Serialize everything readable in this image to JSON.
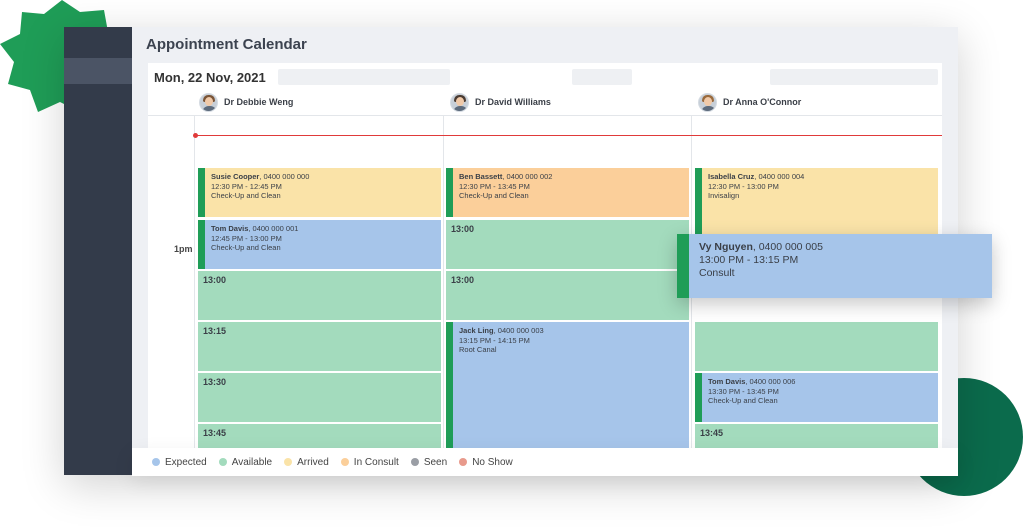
{
  "page": {
    "title": "Appointment Calendar",
    "date": "Mon, 22 Nov, 2021",
    "time_label": "1pm"
  },
  "doctors": [
    {
      "name": "Dr Debbie Weng",
      "hair": "#7a5436"
    },
    {
      "name": "Dr David Williams",
      "hair": "#4a3b32"
    },
    {
      "name": "Dr Anna O'Connor",
      "hair": "#9a6a3c"
    }
  ],
  "columns": [
    [
      {
        "status": "arrived",
        "name": "Susie Cooper",
        "phone": ", 0400 000 000",
        "time": "12:30 PM - 12:45 PM",
        "reason": "Check-Up and Clean"
      },
      {
        "status": "expected",
        "name": "Tom Davis",
        "phone": ", 0400 000 001",
        "time": "12:45 PM - 13:00 PM",
        "reason": "Check-Up and Clean"
      },
      {
        "status": "available",
        "label": "13:00"
      },
      {
        "status": "available",
        "label": "13:15"
      },
      {
        "status": "available",
        "label": "13:30"
      },
      {
        "status": "available",
        "label": "13:45"
      }
    ],
    [
      {
        "status": "in_consult",
        "name": "Ben Bassett",
        "phone": ", 0400 000 002",
        "time": "12:30 PM - 13:45 PM",
        "reason": "Check-Up and Clean"
      },
      {
        "status": "available",
        "label": "13:00"
      },
      {
        "status": "available",
        "label": "13:00"
      },
      {
        "status": "expected",
        "name": "Jack Ling",
        "phone": ", 0400 000 003",
        "time": "13:15 PM - 14:15 PM",
        "reason": "Root Canal"
      }
    ],
    [
      {
        "status": "arrived",
        "name": "Isabella Cruz",
        "phone": ", 0400 000 004",
        "time": "12:30 PM - 13:00 PM",
        "reason": "Invisalign"
      },
      {
        "status": "available",
        "label": ""
      },
      {
        "status": "expected",
        "name": "Tom Davis",
        "phone": ", 0400 000 006",
        "time": "13:30 PM - 13:45 PM",
        "reason": "Check-Up and Clean"
      },
      {
        "status": "available",
        "label": "13:45"
      }
    ]
  ],
  "floating_card": {
    "name": "Vy Nguyen",
    "phone": ", 0400 000 005",
    "time": "13:00 PM - 13:15 PM",
    "reason": "Consult"
  },
  "legend": [
    {
      "label": "Expected",
      "color": "#a6c5ea"
    },
    {
      "label": "Available",
      "color": "#a3dbbd"
    },
    {
      "label": "Arrived",
      "color": "#fae3a8"
    },
    {
      "label": "In Consult",
      "color": "#fbcf9a"
    },
    {
      "label": "Seen",
      "color": "#9a9ea5"
    },
    {
      "label": "No Show",
      "color": "#e89a8c"
    }
  ],
  "colors": {
    "sidebar": "#333b4a",
    "accent_green": "#1f9d57",
    "now_line": "#e03a3a"
  },
  "icons": {
    "avatar": "doctor-avatar-icon"
  }
}
